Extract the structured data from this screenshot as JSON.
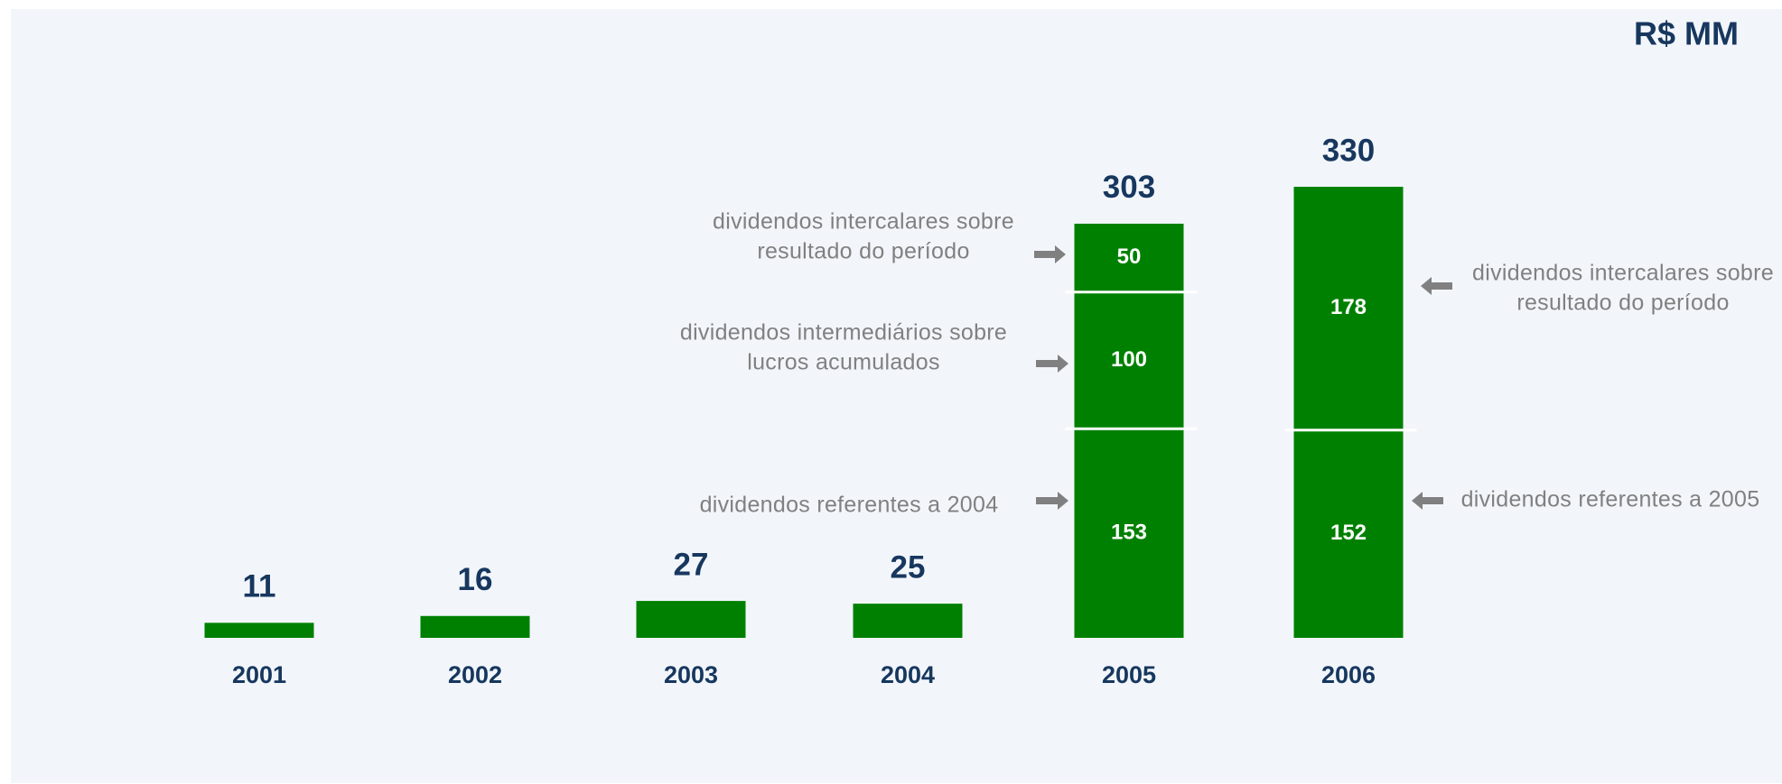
{
  "chart_data": {
    "type": "stacked_bar",
    "title": "R$ MM",
    "categories": [
      "2001",
      "2002",
      "2003",
      "2004",
      "2005",
      "2006"
    ],
    "series": [
      {
        "color": "#008000",
        "values": [
          11,
          16,
          27,
          25,
          153,
          152
        ]
      },
      {
        "color": "#008000",
        "values": [
          null,
          null,
          null,
          null,
          100,
          null
        ]
      },
      {
        "color": "#008000",
        "values": [
          null,
          null,
          null,
          null,
          50,
          178
        ]
      }
    ],
    "totals": [
      11,
      16,
      27,
      25,
      303,
      330
    ],
    "annotations": [
      {
        "lines": [
          "dividendos intercalares sobre",
          "resultado do período"
        ]
      },
      {
        "lines": [
          "dividendos intermediários sobre",
          "lucros acumulados"
        ]
      },
      {
        "lines": [
          "dividendos referentes a 2004"
        ]
      },
      {
        "lines": [
          "dividendos intercalares sobre",
          "resultado do período"
        ]
      },
      {
        "lines": [
          "dividendos referentes a 2005"
        ]
      }
    ]
  }
}
